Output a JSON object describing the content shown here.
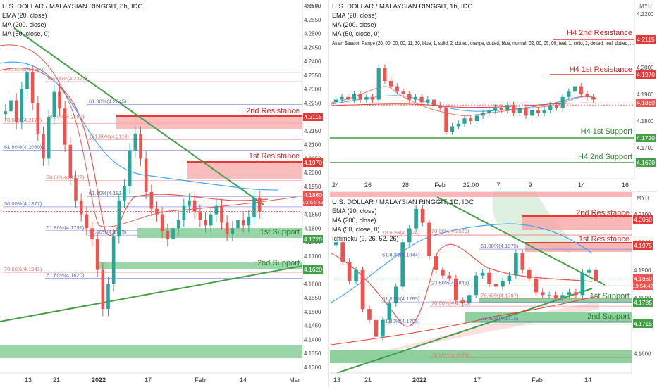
{
  "colors": {
    "up": "#26a69a",
    "down": "#ef5350",
    "ema": "#ef5350",
    "ma200": "#e53935",
    "ma50": "#42a5f5",
    "trend": "#43a047",
    "resist_line": "#e53935",
    "resist_fill": "#f8a5a5",
    "support_fill": "#8fd19e",
    "support_line": "#388e3c",
    "fib": "#5c6bc0",
    "fib_red": "#e57373",
    "kumo": "#c8e6c9"
  },
  "chart_data": [
    {
      "id": "8h",
      "type": "candlestick",
      "title": "U.S. DOLLAR / MALAYSIAN RINGGIT, 8h, IDC",
      "currency": "MYR",
      "indicators": [
        "EMA (20, close)",
        "MA (200, close)",
        "MA (50, close, 0)"
      ],
      "ylim": [
        4.13,
        4.26
      ],
      "y_ticks": [
        "4.2600",
        "4.2550",
        "4.2500",
        "4.2450",
        "4.2400",
        "4.2350",
        "4.2300",
        "4.2250",
        "4.2200",
        "4.2150",
        "4.2100",
        "4.2050",
        "4.2000",
        "4.1950",
        "4.1900",
        "4.1850",
        "4.1800",
        "4.1750",
        "4.1700",
        "4.1650",
        "4.1600",
        "4.1550",
        "4.1500",
        "4.1450",
        "4.1400",
        "4.1350",
        "4.1300"
      ],
      "x_ticks": [
        "13",
        "21",
        "2022",
        "17",
        "Feb",
        "14",
        "Mar"
      ],
      "last_price": "4.1860",
      "countdown": "03:54:42",
      "levels": [
        {
          "label": "2nd Resistance",
          "value": "4.2115",
          "kind": "resistance"
        },
        {
          "label": "1st Resistance",
          "value": "4.1970",
          "kind": "resistance"
        },
        {
          "label": "1st Support",
          "value": "4.1720",
          "kind": "support"
        },
        {
          "label": "2nd Support",
          "value": "4.1620",
          "kind": "support"
        }
      ],
      "fib_labels": [
        "100.00%(4.2360)",
        "100.00%(4.2327)",
        "61.80%(4.2245)",
        "78.60%(4.2177)",
        "78.60%(4.2189)",
        "161.80%(4.2118)",
        "61.80%(4.2080)",
        "78.60%(4.1972)",
        "61.80%(4.1914)",
        "50.00%(4.1877)",
        "61.80%(4.1791)",
        "50.00%(4.1775)",
        "78.60%(4.1641)",
        "61.80%(4.1620)"
      ],
      "closes": [
        4.222,
        4.226,
        4.218,
        4.23,
        4.236,
        4.225,
        4.214,
        4.205,
        4.22,
        4.229,
        4.223,
        4.21,
        4.198,
        4.19,
        4.185,
        4.18,
        4.176,
        4.165,
        4.151,
        4.16,
        4.177,
        4.19,
        4.195,
        4.208,
        4.214,
        4.205,
        4.193,
        4.187,
        4.185,
        4.179,
        4.176,
        4.18,
        4.183,
        4.188,
        4.19,
        4.186,
        4.183,
        4.181,
        4.185,
        4.188,
        4.182,
        4.178,
        4.18,
        4.183,
        4.181,
        4.184,
        4.191,
        4.186
      ]
    },
    {
      "id": "1h",
      "type": "candlestick",
      "title": "U.S. DOLLAR / MALAYSIAN RINGGIT, 1h, IDC",
      "currency": "MYR",
      "indicators": [
        "EMA (20, close)",
        "MA (200, close)",
        "MA (50, close, 0)",
        "Asian Session Range (20, 00, 00, 00, 11, 30, blue, 1, solid, 2, dotted, orange, dotted, blue, normal, 02, 00, 05, 00, teal, 1, solid, 2, dotted, teal, dotted, ..."
      ],
      "ylim": [
        4.16,
        4.22
      ],
      "y_ticks": [
        "4.2200",
        "4.2100",
        "4.2000",
        "4.1900",
        "4.1800",
        "4.1700"
      ],
      "x_ticks": [
        "24",
        "26",
        "28",
        "Feb",
        "22:00",
        "7",
        "9",
        "14",
        "16"
      ],
      "last_price": "4.1860",
      "levels": [
        {
          "label": "H4 2nd Resistance",
          "value": "4.2115",
          "kind": "resistance"
        },
        {
          "label": "H4 1st Resistance",
          "value": "4.1970",
          "kind": "resistance"
        },
        {
          "label": "H4 1st Support",
          "value": "4.1720",
          "kind": "support"
        },
        {
          "label": "H4 2nd Support",
          "value": "4.1620",
          "kind": "support"
        }
      ],
      "closes": [
        4.188,
        4.189,
        4.188,
        4.19,
        4.188,
        4.189,
        4.188,
        4.2,
        4.195,
        4.193,
        4.191,
        4.19,
        4.188,
        4.189,
        4.187,
        4.188,
        4.186,
        4.185,
        4.176,
        4.178,
        4.179,
        4.181,
        4.18,
        4.182,
        4.183,
        4.184,
        4.185,
        4.184,
        4.186,
        4.183,
        4.185,
        4.182,
        4.184,
        4.183,
        4.184,
        4.186,
        4.185,
        4.189,
        4.191,
        4.193,
        4.19,
        4.189,
        4.188
      ]
    },
    {
      "id": "1d",
      "type": "candlestick",
      "title": "U.S. DOLLAR / MALAYSIAN RINGGIT, 1D, IDC",
      "currency": "MYR",
      "indicators": [
        "EMA (20, close)",
        "MA (200, close)",
        "MA (50, close, 0)",
        "Ichimoku (9, 26, 52, 26)"
      ],
      "ylim": [
        4.155,
        4.215
      ],
      "y_ticks": [
        "4.2100",
        "4.2000",
        "4.1900",
        "4.1800",
        "4.1700",
        "4.1600"
      ],
      "x_ticks": [
        "13",
        "21",
        "2022",
        "17",
        "Feb",
        "14"
      ],
      "last_price": "4.1860",
      "countdown": "19:54:42",
      "levels": [
        {
          "label": "2nd Resistance",
          "value": "4.2060",
          "kind": "resistance"
        },
        {
          "label": "1st Resistance",
          "value": "4.1975",
          "kind": "resistance"
        },
        {
          "label": "1st Support",
          "value": "4.1785",
          "kind": "support"
        },
        {
          "label": "2nd Support",
          "value": "4.1715",
          "kind": "support"
        }
      ],
      "fib_labels": [
        "78.60%(4.2024)",
        "78.60%(4.2028)",
        "61.80%(4.1975)",
        "61.80%(4.1944)",
        "23.60%(4.1843)",
        "78.60%(4.1797)",
        "61.80%(4.1785)",
        "78.60%(4.1770)",
        "61.80%(4.1715)",
        "61.80%(4.1705)",
        "78.60%(4.1584)"
      ],
      "closes": [
        4.2,
        4.193,
        4.186,
        4.19,
        4.176,
        4.172,
        4.166,
        4.172,
        4.178,
        4.184,
        4.2,
        4.205,
        4.212,
        4.207,
        4.195,
        4.19,
        4.188,
        4.187,
        4.179,
        4.178,
        4.181,
        4.188,
        4.189,
        4.185,
        4.184,
        4.186,
        4.188,
        4.196,
        4.19,
        4.187,
        4.182,
        4.181,
        4.181,
        4.18,
        4.181,
        4.182,
        4.181,
        4.189,
        4.19,
        4.186
      ]
    }
  ]
}
